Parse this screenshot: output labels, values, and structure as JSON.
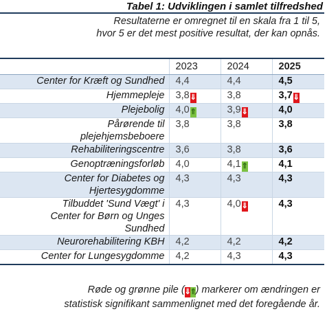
{
  "title": "Tabel 1: Udviklingen i samlet tilfredshed",
  "subtitle_line1": "Resultaterne er omregnet til en skala fra 1 til 5,",
  "subtitle_line2": "hvor 5 er det mest positive resultat, der kan opnås.",
  "years": [
    "2023",
    "2024",
    "2025"
  ],
  "rows": [
    {
      "label": [
        "Center for Kræft og Sundhed"
      ],
      "values": [
        "4,4",
        "4,4",
        "4,5"
      ],
      "arrows": [
        null,
        null,
        null
      ]
    },
    {
      "label": [
        "Hjemmepleje"
      ],
      "values": [
        "3,8",
        "3,8",
        "3,7"
      ],
      "arrows": [
        "down",
        null,
        "down"
      ]
    },
    {
      "label": [
        "Plejebolig"
      ],
      "values": [
        "4,0",
        "3,9",
        "4,0"
      ],
      "arrows": [
        "up",
        "down",
        null
      ]
    },
    {
      "label": [
        "Pårørende til",
        "plejehjemsbeboere"
      ],
      "values": [
        "3,8",
        "3,8",
        "3,8"
      ],
      "arrows": [
        null,
        null,
        null
      ]
    },
    {
      "label": [
        "Rehabiliteringscentre"
      ],
      "values": [
        "3,6",
        "3,8",
        "3,6"
      ],
      "arrows": [
        null,
        null,
        null
      ]
    },
    {
      "label": [
        "Genoptræningsforløb"
      ],
      "values": [
        "4,0",
        "4,1",
        "4,1"
      ],
      "arrows": [
        null,
        "up",
        null
      ]
    },
    {
      "label": [
        "Center for Diabetes og",
        "Hjertesygdomme"
      ],
      "values": [
        "4,3",
        "4,3",
        "4,3"
      ],
      "arrows": [
        null,
        null,
        null
      ]
    },
    {
      "label": [
        "Tilbuddet 'Sund Vægt' i",
        "Center for Børn og Unges",
        "Sundhed"
      ],
      "values": [
        "4,3",
        "4,0",
        "4,3"
      ],
      "arrows": [
        null,
        "down",
        null
      ]
    },
    {
      "label": [
        "Neurorehabilitering KBH"
      ],
      "values": [
        "4,2",
        "4,2",
        "4,2"
      ],
      "arrows": [
        null,
        null,
        null
      ]
    },
    {
      "label": [
        "Center for Lungesygdomme"
      ],
      "values": [
        "4,2",
        "4,3",
        "4,3"
      ],
      "arrows": [
        null,
        null,
        null
      ]
    }
  ],
  "shaded_rows": [
    0,
    2,
    4,
    6,
    8
  ],
  "arrow_glyphs": {
    "down": "⇓",
    "up": "⇑"
  },
  "colors": {
    "down": "#e0161b",
    "up": "#7cc242",
    "shade": "#dce6f2",
    "rule": "#1f3b5c"
  },
  "footnote_part1": "Røde og grønne pile (",
  "footnote_part2": ") markerer om ændringen er",
  "footnote_line2": "statistisk signifikant sammenlignet med det foregående år."
}
